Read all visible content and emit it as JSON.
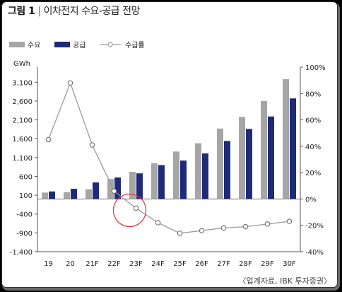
{
  "figure": {
    "label": "그림 1",
    "title": "이차전지 수요-공급 전망",
    "source": "〈업계자료, IBK 투자증권〉"
  },
  "colors": {
    "demand": "#a6a6a6",
    "supply": "#1f2a7a",
    "ratio_line": "#9a9a9a",
    "highlight_circle": "#e0393e",
    "title_separator": "#3a7fd0"
  },
  "chart_data": {
    "type": "bar",
    "categories": [
      "19",
      "20",
      "21F",
      "22F",
      "23F",
      "24F",
      "25F",
      "26F",
      "27F",
      "28F",
      "29F",
      "30F"
    ],
    "ylabel": "GWh",
    "ylim": [
      -1400,
      3500
    ],
    "yticks": [
      -1400,
      -900,
      -400,
      100,
      600,
      1100,
      1600,
      2100,
      2600,
      3100
    ],
    "ytick_labels": [
      "-1,400",
      "-900",
      "-400",
      "100",
      "600",
      "1,100",
      "1,600",
      "2,100",
      "2,600",
      "3,100"
    ],
    "y2lim": [
      -40,
      100
    ],
    "y2ticks": [
      -40,
      -20,
      0,
      20,
      40,
      60,
      80,
      100
    ],
    "y2tick_labels": [
      "-40%",
      "-20%",
      "0%",
      "20%",
      "40%",
      "60%",
      "80%",
      "100%"
    ],
    "grid": false,
    "legend_position": "top-left",
    "series": [
      {
        "name": "수요",
        "kind": "bar",
        "values": [
          170,
          180,
          260,
          530,
          720,
          950,
          1260,
          1480,
          1870,
          2180,
          2600,
          3180
        ]
      },
      {
        "name": "공급",
        "kind": "bar",
        "values": [
          200,
          270,
          440,
          570,
          680,
          900,
          1020,
          1210,
          1540,
          1860,
          2190,
          2670
        ]
      },
      {
        "name": "수급률",
        "kind": "line",
        "axis": "right",
        "values": [
          45,
          88,
          41,
          6,
          -7,
          -18,
          -26,
          -24,
          -22,
          -21,
          -19,
          -17
        ]
      }
    ],
    "annotation": {
      "type": "circle",
      "category": "23F"
    }
  }
}
